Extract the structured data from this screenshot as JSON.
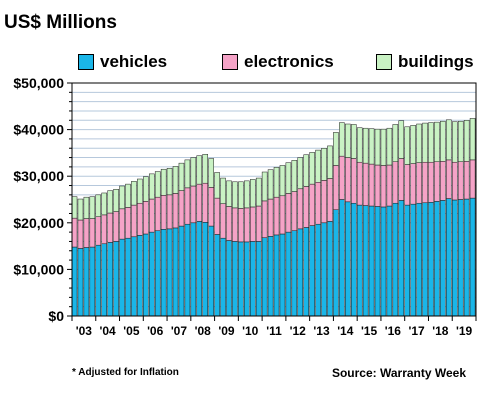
{
  "chart_data": {
    "type": "stacked-bar",
    "title": "US$ Millions",
    "ylim": [
      0,
      50000
    ],
    "y_ticks": [
      "$0",
      "$10,000",
      "$20,000",
      "$30,000",
      "$40,000",
      "$50,000"
    ],
    "y_tick_values": [
      0,
      10000,
      20000,
      30000,
      40000,
      50000
    ],
    "x_ticks": [
      "'03",
      "'04",
      "'05",
      "'06",
      "'07",
      "'08",
      "'09",
      "'10",
      "'11",
      "'12",
      "'13",
      "'14",
      "'15",
      "'16",
      "'17",
      "'18",
      "'19"
    ],
    "legend_placement": "top",
    "categories": [
      "2003 Q1",
      "2003 Q2",
      "2003 Q3",
      "2003 Q4",
      "2004 Q1",
      "2004 Q2",
      "2004 Q3",
      "2004 Q4",
      "2005 Q1",
      "2005 Q2",
      "2005 Q3",
      "2005 Q4",
      "2006 Q1",
      "2006 Q2",
      "2006 Q3",
      "2006 Q4",
      "2007 Q1",
      "2007 Q2",
      "2007 Q3",
      "2007 Q4",
      "2008 Q1",
      "2008 Q2",
      "2008 Q3",
      "2008 Q4",
      "2009 Q1",
      "2009 Q2",
      "2009 Q3",
      "2009 Q4",
      "2010 Q1",
      "2010 Q2",
      "2010 Q3",
      "2010 Q4",
      "2011 Q1",
      "2011 Q2",
      "2011 Q3",
      "2011 Q4",
      "2012 Q1",
      "2012 Q2",
      "2012 Q3",
      "2012 Q4",
      "2013 Q1",
      "2013 Q2",
      "2013 Q3",
      "2013 Q4",
      "2014 Q1",
      "2014 Q2",
      "2014 Q3",
      "2014 Q4",
      "2015 Q1",
      "2015 Q2",
      "2015 Q3",
      "2015 Q4",
      "2016 Q1",
      "2016 Q2",
      "2016 Q3",
      "2016 Q4",
      "2017 Q1",
      "2017 Q2",
      "2017 Q3",
      "2017 Q4",
      "2018 Q1",
      "2018 Q2",
      "2018 Q3",
      "2018 Q4",
      "2019 Q1",
      "2019 Q2",
      "2019 Q3",
      "2019 Q4"
    ],
    "series": [
      {
        "name": "vehicles",
        "color": "#1ab6e8",
        "values": [
          14800,
          14500,
          14700,
          14800,
          15200,
          15500,
          15800,
          16000,
          16500,
          16700,
          17000,
          17300,
          17600,
          18000,
          18300,
          18600,
          18700,
          18900,
          19300,
          19700,
          20000,
          20300,
          20100,
          19300,
          17500,
          16700,
          16200,
          16000,
          15900,
          15900,
          16000,
          16000,
          16800,
          17100,
          17400,
          17600,
          18000,
          18300,
          18700,
          19000,
          19400,
          19700,
          20000,
          20300,
          22800,
          25000,
          24500,
          24200,
          23800,
          23700,
          23600,
          23500,
          23400,
          23600,
          24200,
          24800,
          23800,
          24000,
          24200,
          24300,
          24400,
          24600,
          24800,
          25200,
          24900,
          25000,
          25100,
          25300
        ]
      },
      {
        "name": "electronics",
        "color": "#f5a3c7",
        "values": [
          6200,
          6100,
          6200,
          6100,
          6100,
          6200,
          6300,
          6400,
          6500,
          6600,
          6800,
          6900,
          7000,
          7100,
          7200,
          7300,
          7300,
          7400,
          7600,
          7800,
          7900,
          8000,
          8400,
          8300,
          7800,
          7400,
          7300,
          7200,
          7200,
          7300,
          7400,
          7600,
          7900,
          8000,
          8100,
          8200,
          8300,
          8400,
          8600,
          8800,
          8900,
          9000,
          9100,
          9200,
          9500,
          9300,
          9500,
          9600,
          9200,
          9100,
          9000,
          8900,
          8900,
          8800,
          8900,
          9000,
          8700,
          8700,
          8700,
          8700,
          8600,
          8500,
          8400,
          8300,
          8100,
          8100,
          8100,
          8200
        ]
      },
      {
        "name": "buildings",
        "color": "#c9f2c4",
        "values": [
          4600,
          4500,
          4600,
          4700,
          4700,
          4700,
          4800,
          4800,
          4900,
          5000,
          5100,
          5200,
          5300,
          5400,
          5500,
          5600,
          5700,
          5800,
          5900,
          6000,
          6100,
          6100,
          6200,
          6200,
          5500,
          5500,
          5500,
          5600,
          5700,
          5800,
          5900,
          6000,
          6200,
          6300,
          6400,
          6500,
          6600,
          6700,
          6700,
          6800,
          6800,
          6900,
          6900,
          7000,
          7100,
          7200,
          7200,
          7300,
          7400,
          7500,
          7600,
          7700,
          7800,
          7900,
          8000,
          8100,
          8100,
          8200,
          8300,
          8400,
          8500,
          8500,
          8600,
          8600,
          8700,
          8700,
          8800,
          8900
        ]
      }
    ]
  },
  "annotations": {
    "footnote": "* Adjusted for Inflation",
    "source": "Source: Warranty Week"
  }
}
